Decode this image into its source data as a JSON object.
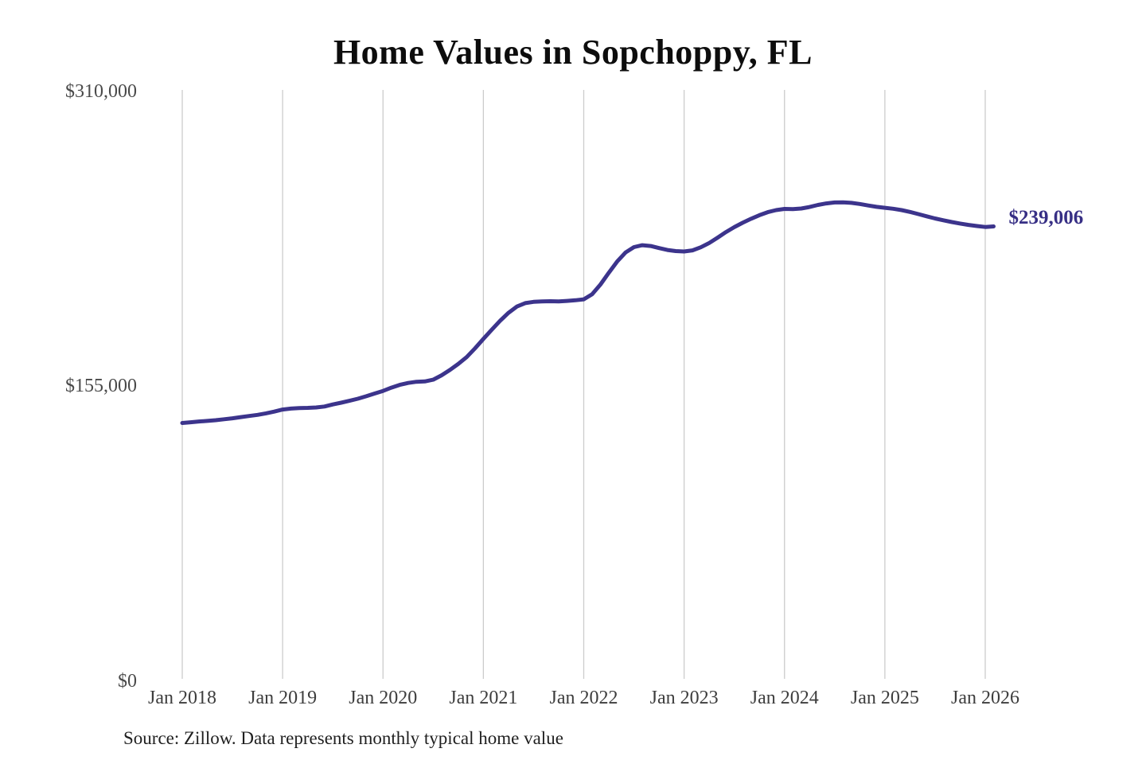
{
  "title": "Home Values in Sopchoppy, FL",
  "source": "Source: Zillow. Data represents monthly typical home value",
  "annotation": {
    "label": "$239,006"
  },
  "colors": {
    "line": "#3c348c",
    "annotation": "#372f85",
    "gridline": "#cccccc",
    "title": "#0d0d0d",
    "tick_text": "#4a4a4a"
  },
  "axes": {
    "y": {
      "ticks": [
        "$310,000",
        "$155,000",
        "$0"
      ],
      "tick_values": [
        310000,
        155000,
        0
      ]
    },
    "x": {
      "ticks": [
        "Jan 2018",
        "Jan 2019",
        "Jan 2020",
        "Jan 2021",
        "Jan 2022",
        "Jan 2023",
        "Jan 2024",
        "Jan 2025",
        "Jan 2026"
      ]
    }
  },
  "chart_data": {
    "type": "line",
    "title": "Home Values in Sopchoppy, FL",
    "xlabel": "",
    "ylabel": "",
    "x_start": "2018-01",
    "x_end": "2026-02",
    "x_interval": "monthly",
    "ylim": [
      0,
      310000
    ],
    "yticks": [
      0,
      155000,
      310000
    ],
    "grid": "vertical-only",
    "legend_position": "none",
    "final_value": 239006,
    "final_value_label": "$239,006",
    "series": [
      {
        "name": "Typical home value ($)",
        "values": [
          135500,
          135900,
          136300,
          136600,
          137000,
          137500,
          138000,
          138600,
          139200,
          139800,
          140600,
          141500,
          142600,
          143100,
          143400,
          143500,
          143700,
          144200,
          145300,
          146200,
          147200,
          148300,
          149600,
          151000,
          152400,
          154100,
          155600,
          156600,
          157200,
          157400,
          158300,
          160600,
          163400,
          166600,
          170200,
          174800,
          179800,
          184600,
          189300,
          193500,
          196800,
          198600,
          199300,
          199500,
          199600,
          199500,
          199800,
          200100,
          200600,
          203300,
          208400,
          214600,
          220500,
          225300,
          228100,
          229100,
          228700,
          227600,
          226600,
          226000,
          225800,
          226400,
          228000,
          230300,
          233100,
          236000,
          238600,
          240900,
          243000,
          244900,
          246500,
          247600,
          248200,
          248100,
          248400,
          249200,
          250300,
          251100,
          251600,
          251700,
          251400,
          250800,
          250000,
          249300,
          248800,
          248300,
          247600,
          246600,
          245500,
          244300,
          243200,
          242200,
          241300,
          240500,
          239800,
          239200,
          238700,
          239006
        ]
      }
    ]
  }
}
